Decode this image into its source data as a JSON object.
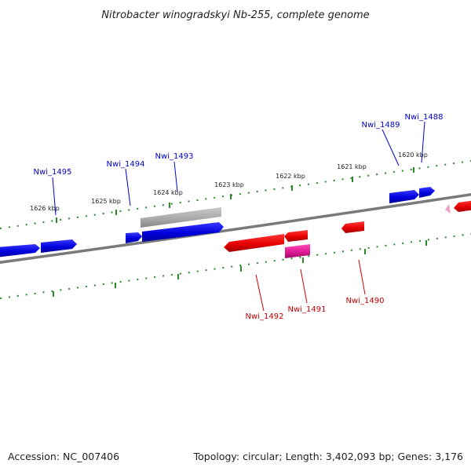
{
  "title": "Nitrobacter winogradskyi Nb-255, complete genome",
  "footer": {
    "accession": "Accession: NC_007406",
    "summary": "Topology: circular; Length: 3,402,093 bp; Genes: 3,176"
  },
  "colors": {
    "forward_gene": "#0000dd",
    "reverse_gene": "#ee0000",
    "pseudo_gene": "#b0b0b0",
    "pink_gene": "#e0209a",
    "tick": "#2a8a2a",
    "backbone": "#808080",
    "forward_label": "#0000cc",
    "reverse_label": "#cc0000"
  },
  "kbp_labels": [
    "1626 kbp",
    "1625 kbp",
    "1624 kbp",
    "1623 kbp",
    "1622 kbp",
    "1621 kbp",
    "1620 kbp"
  ],
  "forward_labels": [
    "Nwi_1495",
    "Nwi_1494",
    "Nwi_1493",
    "Nwi_1489",
    "Nwi_1488"
  ],
  "reverse_labels": [
    "Nwi_1492",
    "Nwi_1491",
    "Nwi_1490"
  ]
}
